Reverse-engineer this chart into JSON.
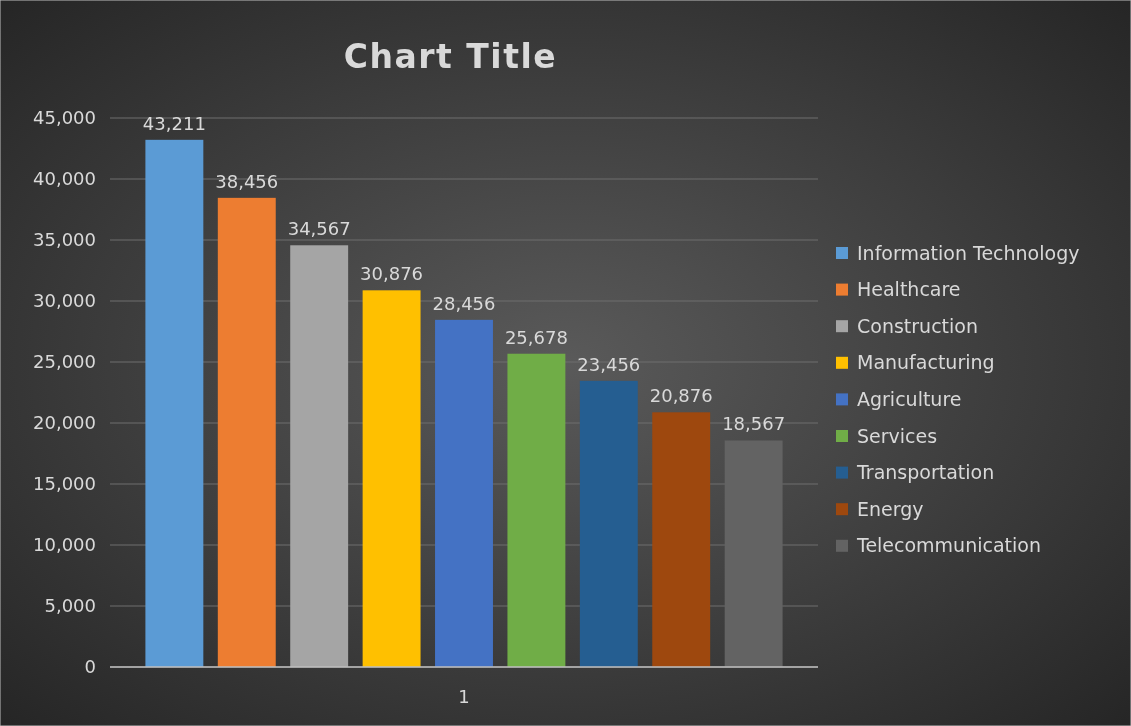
{
  "chart_data": {
    "type": "bar",
    "title": "Chart Title",
    "categories": [
      "1"
    ],
    "series": [
      {
        "name": "Information Technology",
        "color": "#5b9bd5",
        "values": [
          43211
        ],
        "value_labels": [
          "43,211"
        ]
      },
      {
        "name": "Healthcare",
        "color": "#ed7d31",
        "values": [
          38456
        ],
        "value_labels": [
          "38,456"
        ]
      },
      {
        "name": "Construction",
        "color": "#a5a5a5",
        "values": [
          34567
        ],
        "value_labels": [
          "34,567"
        ]
      },
      {
        "name": "Manufacturing",
        "color": "#ffc000",
        "values": [
          30876
        ],
        "value_labels": [
          "30,876"
        ]
      },
      {
        "name": "Agriculture",
        "color": "#4472c4",
        "values": [
          28456
        ],
        "value_labels": [
          "28,456"
        ]
      },
      {
        "name": "Services",
        "color": "#70ad47",
        "values": [
          25678
        ],
        "value_labels": [
          "25,678"
        ]
      },
      {
        "name": "Transportation",
        "color": "#255e91",
        "values": [
          23456
        ],
        "value_labels": [
          "23,456"
        ]
      },
      {
        "name": "Energy",
        "color": "#9e480e",
        "values": [
          20876
        ],
        "value_labels": [
          "20,876"
        ]
      },
      {
        "name": "Telecommunication",
        "color": "#636363",
        "values": [
          18567
        ],
        "value_labels": [
          "18,567"
        ]
      }
    ],
    "ylim": [
      0,
      45000
    ],
    "yticks": [
      0,
      {
        "value": 5000,
        "label": "5,000"
      },
      {
        "value": 10000,
        "label": "10,000"
      },
      {
        "value": 15000,
        "label": "15,000"
      },
      {
        "value": 20000,
        "label": "20,000"
      },
      {
        "value": 25000,
        "label": "25,000"
      },
      {
        "value": 30000,
        "label": "30,000"
      },
      {
        "value": 35000,
        "label": "35,000"
      },
      {
        "value": 40000,
        "label": "40,000"
      },
      {
        "value": 45000,
        "label": "45,000"
      }
    ],
    "grid": "y",
    "legend": "right"
  }
}
